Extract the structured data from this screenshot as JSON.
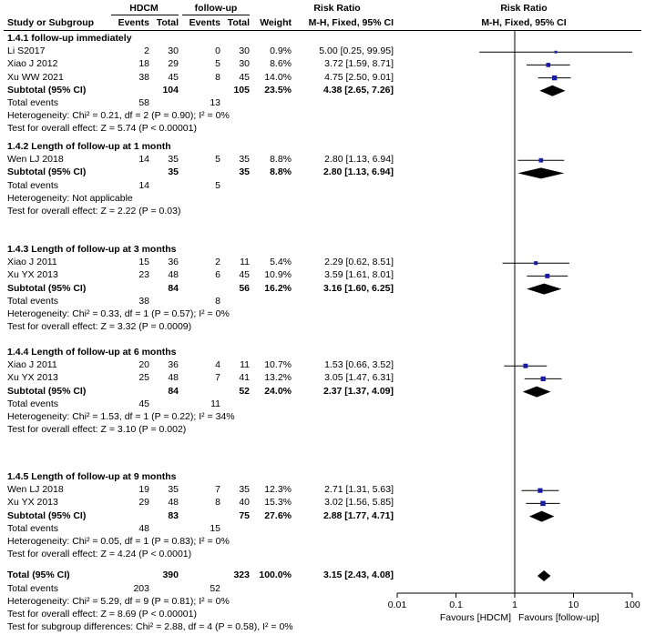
{
  "header": {
    "group1": "HDCM",
    "group2": "follow-up",
    "rr_left": "Risk Ratio",
    "rr_right": "Risk Ratio",
    "study": "Study or Subgroup",
    "events1": "Events",
    "total1": "Total",
    "events2": "Events",
    "total2": "Total",
    "weight": "Weight",
    "method_left": "M-H, Fixed, 95% CI",
    "method_right": "M-H, Fixed, 95% CI"
  },
  "footer": {
    "total_label": "Total (95% CI)",
    "total_n1": "390",
    "total_n2": "323",
    "total_weight": "100.0%",
    "total_ci": "3.15 [2.43, 4.08]",
    "total_events_label": "Total events",
    "total_events1": "203",
    "total_events2": "52",
    "heterogeneity": "Heterogeneity: Chi² = 5.29, df = 9 (P = 0.81); I² = 0%",
    "overall": "Test for overall effect: Z = 8.69 (P < 0.00001)",
    "subgroup": "Test for subgroup differences: Chi² = 2.88, df = 4 (P = 0.58), I² = 0%"
  },
  "axis": {
    "ticks": [
      "0.01",
      "0.1",
      "1",
      "10",
      "100"
    ],
    "favours_left": "Favours [HDCM]",
    "favours_right": "Favours [follow-up]"
  },
  "chart_data": {
    "type": "forest",
    "scale": "log",
    "xlim": [
      0.01,
      100
    ],
    "null_line": 1,
    "subgroups": [
      {
        "title": "1.4.1 follow-up immediately",
        "studies": [
          {
            "name": "Li S2017",
            "e1": "2",
            "n1": "30",
            "e2": "0",
            "n2": "30",
            "weight": "0.9%",
            "ci_text": "5.00 [0.25, 99.95]",
            "rr": 5.0,
            "lo": 0.25,
            "hi": 99.95
          },
          {
            "name": "Xiao J 2012",
            "e1": "18",
            "n1": "29",
            "e2": "5",
            "n2": "30",
            "weight": "8.6%",
            "ci_text": "3.72 [1.59, 8.71]",
            "rr": 3.72,
            "lo": 1.59,
            "hi": 8.71
          },
          {
            "name": "Xu WW 2021",
            "e1": "38",
            "n1": "45",
            "e2": "8",
            "n2": "45",
            "weight": "14.0%",
            "ci_text": "4.75 [2.50, 9.01]",
            "rr": 4.75,
            "lo": 2.5,
            "hi": 9.01
          }
        ],
        "subtotal": {
          "label": "Subtotal (95% CI)",
          "n1": "104",
          "n2": "105",
          "weight": "23.5%",
          "ci_text": "4.38 [2.65, 7.26]",
          "rr": 4.38,
          "lo": 2.65,
          "hi": 7.26
        },
        "events": {
          "label": "Total events",
          "e1": "58",
          "e2": "13"
        },
        "het": "Heterogeneity: Chi² = 0.21, df = 2 (P = 0.90); I² = 0%",
        "effect": "Test for overall effect: Z = 5.74 (P < 0.00001)"
      },
      {
        "title": "1.4.2 Length of follow-up at 1 month",
        "studies": [
          {
            "name": "Wen LJ 2018",
            "e1": "14",
            "n1": "35",
            "e2": "5",
            "n2": "35",
            "weight": "8.8%",
            "ci_text": "2.80 [1.13, 6.94]",
            "rr": 2.8,
            "lo": 1.13,
            "hi": 6.94
          }
        ],
        "subtotal": {
          "label": "Subtotal (95% CI)",
          "n1": "35",
          "n2": "35",
          "weight": "8.8%",
          "ci_text": "2.80 [1.13, 6.94]",
          "rr": 2.8,
          "lo": 1.13,
          "hi": 6.94
        },
        "events": {
          "label": "Total events",
          "e1": "14",
          "e2": "5"
        },
        "het": "Heterogeneity: Not applicable",
        "effect": "Test for overall effect: Z = 2.22 (P = 0.03)"
      },
      {
        "title": "1.4.3 Length of follow-up at 3 months",
        "studies": [
          {
            "name": "Xiao J 2011",
            "e1": "15",
            "n1": "36",
            "e2": "2",
            "n2": "11",
            "weight": "5.4%",
            "ci_text": "2.29 [0.62, 8.51]",
            "rr": 2.29,
            "lo": 0.62,
            "hi": 8.51
          },
          {
            "name": "Xu YX 2013",
            "e1": "23",
            "n1": "48",
            "e2": "6",
            "n2": "45",
            "weight": "10.9%",
            "ci_text": "3.59 [1.61, 8.01]",
            "rr": 3.59,
            "lo": 1.61,
            "hi": 8.01
          }
        ],
        "subtotal": {
          "label": "Subtotal (95% CI)",
          "n1": "84",
          "n2": "56",
          "weight": "16.2%",
          "ci_text": "3.16 [1.60, 6.25]",
          "rr": 3.16,
          "lo": 1.6,
          "hi": 6.25
        },
        "events": {
          "label": "Total events",
          "e1": "38",
          "e2": "8"
        },
        "het": "Heterogeneity: Chi² = 0.33, df = 1 (P = 0.57); I² = 0%",
        "effect": "Test for overall effect: Z = 3.32 (P = 0.0009)"
      },
      {
        "title": "1.4.4 Length of follow-up at 6 months",
        "studies": [
          {
            "name": "Xiao J 2011",
            "e1": "20",
            "n1": "36",
            "e2": "4",
            "n2": "11",
            "weight": "10.7%",
            "ci_text": "1.53 [0.66, 3.52]",
            "rr": 1.53,
            "lo": 0.66,
            "hi": 3.52
          },
          {
            "name": "Xu YX 2013",
            "e1": "25",
            "n1": "48",
            "e2": "7",
            "n2": "41",
            "weight": "13.2%",
            "ci_text": "3.05 [1.47, 6.31]",
            "rr": 3.05,
            "lo": 1.47,
            "hi": 6.31
          }
        ],
        "subtotal": {
          "label": "Subtotal (95% CI)",
          "n1": "84",
          "n2": "52",
          "weight": "24.0%",
          "ci_text": "2.37 [1.37, 4.09]",
          "rr": 2.37,
          "lo": 1.37,
          "hi": 4.09
        },
        "events": {
          "label": "Total events",
          "e1": "45",
          "e2": "11"
        },
        "het": "Heterogeneity: Chi² = 1.53, df = 1 (P = 0.22); I² = 34%",
        "effect": "Test for overall effect: Z = 3.10 (P = 0.002)"
      },
      {
        "title": "1.4.5 Length of follow-up at 9 months",
        "studies": [
          {
            "name": "Wen LJ 2018",
            "e1": "19",
            "n1": "35",
            "e2": "7",
            "n2": "35",
            "weight": "12.3%",
            "ci_text": "2.71 [1.31, 5.63]",
            "rr": 2.71,
            "lo": 1.31,
            "hi": 5.63
          },
          {
            "name": "Xu YX 2013",
            "e1": "29",
            "n1": "48",
            "e2": "8",
            "n2": "40",
            "weight": "15.3%",
            "ci_text": "3.02 [1.56, 5.85]",
            "rr": 3.02,
            "lo": 1.56,
            "hi": 5.85
          }
        ],
        "subtotal": {
          "label": "Subtotal (95% CI)",
          "n1": "83",
          "n2": "75",
          "weight": "27.6%",
          "ci_text": "2.88 [1.77, 4.71]",
          "rr": 2.88,
          "lo": 1.77,
          "hi": 4.71
        },
        "events": {
          "label": "Total events",
          "e1": "48",
          "e2": "15"
        },
        "het": "Heterogeneity: Chi² = 0.05, df = 1 (P = 0.83); I² = 0%",
        "effect": "Test for overall effect: Z = 4.24 (P < 0.0001)"
      }
    ],
    "total": {
      "rr": 3.15,
      "lo": 2.43,
      "hi": 4.08
    },
    "marker_color": "#1a1aa6"
  }
}
